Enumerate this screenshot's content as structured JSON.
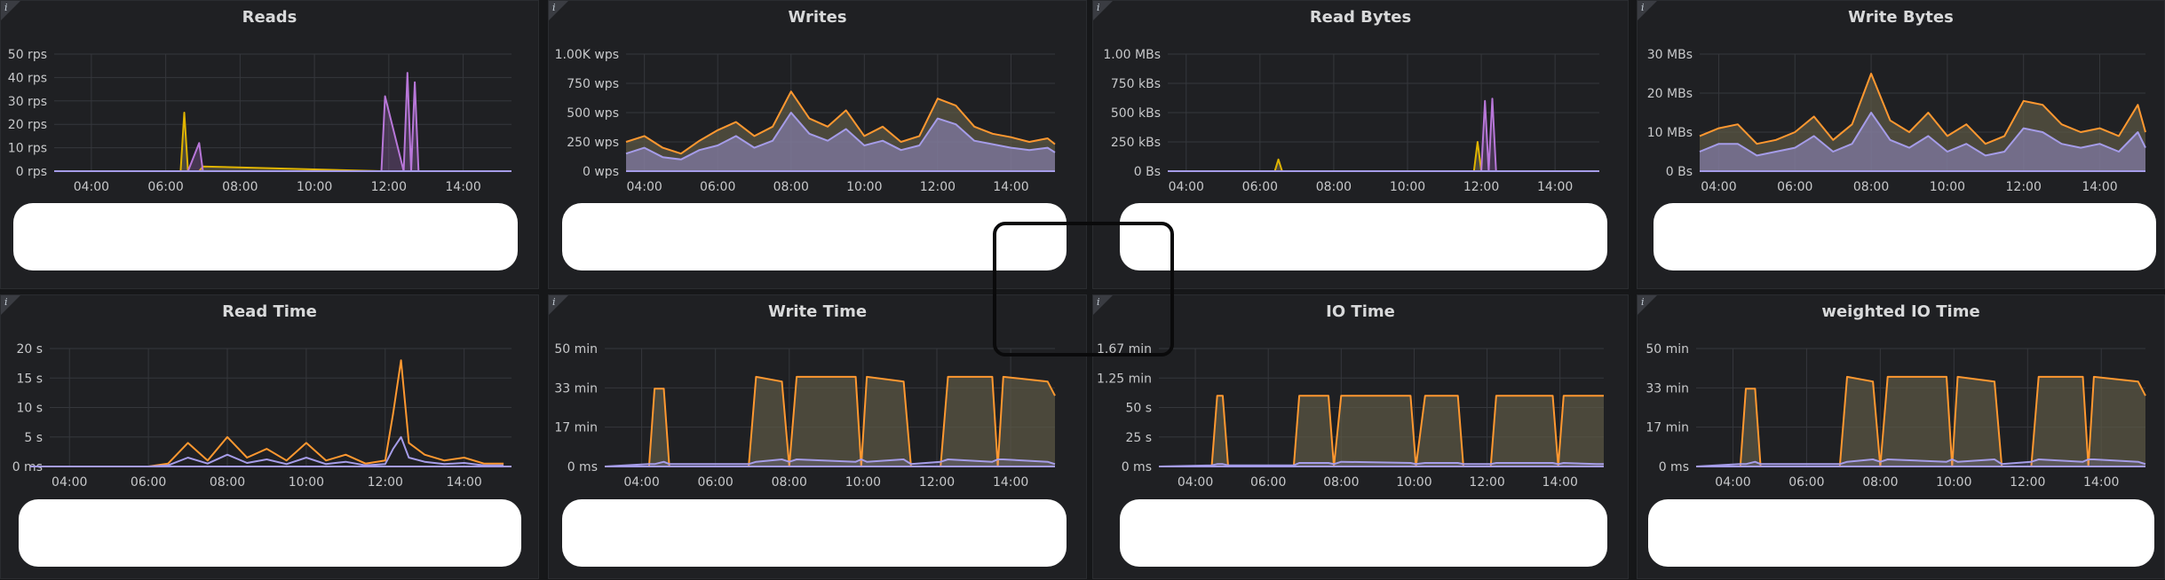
{
  "panels": [
    {
      "title": "Reads",
      "info": "i"
    },
    {
      "title": "Writes",
      "info": "i"
    },
    {
      "title": "Read Bytes",
      "info": "i"
    },
    {
      "title": "Write Bytes",
      "info": "i"
    },
    {
      "title": "Read Time",
      "info": "i"
    },
    {
      "title": "Write Time",
      "info": "i"
    },
    {
      "title": "IO Time",
      "info": "i"
    },
    {
      "title": "weighted IO Time",
      "info": "i"
    }
  ],
  "colors": {
    "orange": "#ff9830",
    "purple": "#b877d9",
    "lavender": "#a59ce8",
    "yellow": "#e0b400",
    "background": "#1f2023",
    "grid": "#35373c"
  },
  "chart_data": [
    {
      "type": "area",
      "title": "Reads",
      "ylim": [
        0,
        50
      ],
      "y_ticks": [
        "0 rps",
        "10 rps",
        "20 rps",
        "30 rps",
        "40 rps",
        "50 rps"
      ],
      "x_ticks": [
        "04:00",
        "06:00",
        "08:00",
        "10:00",
        "12:00",
        "14:00"
      ],
      "x": [
        3.5,
        6.4,
        6.5,
        6.6,
        6.9,
        7.0,
        11.8,
        11.9,
        12.4,
        12.5,
        12.6,
        12.7,
        12.8
      ],
      "series": [
        {
          "values": [
            0,
            0,
            25,
            0,
            0,
            2,
            0,
            0,
            0,
            0,
            0,
            0,
            0
          ]
        },
        {
          "values": [
            0,
            0,
            0,
            0,
            12,
            0,
            0,
            32,
            0,
            42,
            0,
            38,
            0
          ]
        }
      ]
    },
    {
      "type": "area",
      "title": "Writes",
      "ylim": [
        0,
        1000
      ],
      "y_ticks": [
        "0 wps",
        "250 wps",
        "500 wps",
        "750 wps",
        "1.00K wps"
      ],
      "x_ticks": [
        "04:00",
        "06:00",
        "08:00",
        "10:00",
        "12:00",
        "14:00"
      ],
      "x": [
        3.5,
        4.0,
        4.5,
        5.0,
        5.5,
        6.0,
        6.5,
        7.0,
        7.5,
        8.0,
        8.5,
        9.0,
        9.5,
        10.0,
        10.5,
        11.0,
        11.5,
        12.0,
        12.5,
        13.0,
        13.5,
        14.0,
        14.5,
        15.0,
        15.2
      ],
      "series": [
        {
          "values": [
            250,
            300,
            200,
            150,
            260,
            350,
            420,
            300,
            380,
            680,
            450,
            380,
            520,
            300,
            380,
            250,
            300,
            620,
            560,
            380,
            320,
            290,
            250,
            280,
            230
          ]
        },
        {
          "values": [
            150,
            200,
            120,
            100,
            180,
            220,
            300,
            200,
            260,
            500,
            320,
            260,
            360,
            220,
            260,
            180,
            220,
            450,
            400,
            260,
            230,
            200,
            180,
            200,
            160
          ]
        }
      ]
    },
    {
      "type": "area",
      "title": "Read Bytes",
      "ylim": [
        0,
        1000
      ],
      "y_ticks": [
        "0 Bs",
        "250 kBs",
        "500 kBs",
        "750 kBs",
        "1.00 MBs"
      ],
      "x_ticks": [
        "04:00",
        "06:00",
        "08:00",
        "10:00",
        "12:00",
        "14:00"
      ],
      "x": [
        3.5,
        6.4,
        6.5,
        6.6,
        11.8,
        11.9,
        12.0,
        12.1,
        12.2,
        12.3,
        12.4,
        12.5
      ],
      "series": [
        {
          "values": [
            0,
            0,
            100,
            0,
            0,
            250,
            0,
            0,
            0,
            0,
            0,
            0
          ]
        },
        {
          "values": [
            0,
            0,
            0,
            0,
            0,
            0,
            0,
            600,
            0,
            620,
            0,
            0
          ]
        }
      ]
    },
    {
      "type": "area",
      "title": "Write Bytes",
      "ylim": [
        0,
        30
      ],
      "y_ticks": [
        "0 Bs",
        "10 MBs",
        "20 MBs",
        "30 MBs"
      ],
      "x_ticks": [
        "04:00",
        "06:00",
        "08:00",
        "10:00",
        "12:00",
        "14:00"
      ],
      "x": [
        3.5,
        4.0,
        4.5,
        5.0,
        5.5,
        6.0,
        6.5,
        7.0,
        7.5,
        8.0,
        8.5,
        9.0,
        9.5,
        10.0,
        10.5,
        11.0,
        11.5,
        12.0,
        12.5,
        13.0,
        13.5,
        14.0,
        14.5,
        15.0,
        15.2
      ],
      "series": [
        {
          "values": [
            9,
            11,
            12,
            7,
            8,
            10,
            14,
            8,
            12,
            25,
            13,
            10,
            15,
            9,
            12,
            7,
            9,
            18,
            17,
            12,
            10,
            11,
            9,
            17,
            10
          ]
        },
        {
          "values": [
            5,
            7,
            7,
            4,
            5,
            6,
            9,
            5,
            7,
            15,
            8,
            6,
            9,
            5,
            7,
            4,
            5,
            11,
            10,
            7,
            6,
            7,
            5,
            10,
            6
          ]
        }
      ]
    },
    {
      "type": "line",
      "title": "Read Time",
      "ylim": [
        0,
        20
      ],
      "y_ticks": [
        "0 ms",
        "5 s",
        "10 s",
        "15 s",
        "20 s"
      ],
      "x_ticks": [
        "04:00",
        "06:00",
        "08:00",
        "10:00",
        "12:00",
        "14:00"
      ],
      "x": [
        3.0,
        6.0,
        6.5,
        7.0,
        7.5,
        8.0,
        8.5,
        9.0,
        9.5,
        10.0,
        10.5,
        11.0,
        11.5,
        12.0,
        12.2,
        12.4,
        12.6,
        13.0,
        13.5,
        14.0,
        14.5,
        15.0
      ],
      "series": [
        {
          "values": [
            0,
            0,
            0.5,
            4,
            1,
            5,
            1.5,
            3,
            1,
            4,
            1,
            2,
            0.5,
            1,
            9,
            18,
            4,
            2,
            1,
            1.5,
            0.5,
            0.5
          ]
        },
        {
          "values": [
            0,
            0,
            0.2,
            1.5,
            0.5,
            2,
            0.6,
            1.2,
            0.4,
            1.5,
            0.4,
            0.8,
            0.2,
            0.4,
            3,
            5,
            1.5,
            0.8,
            0.4,
            0.6,
            0.2,
            0.2
          ]
        }
      ]
    },
    {
      "type": "line",
      "title": "Write Time",
      "ylim": [
        0,
        50
      ],
      "y_ticks": [
        "0 ms",
        "17 min",
        "33 min",
        "50 min"
      ],
      "x_ticks": [
        "04:00",
        "06:00",
        "08:00",
        "10:00",
        "12:00",
        "14:00"
      ],
      "x": [
        3.0,
        4.2,
        4.35,
        4.6,
        4.75,
        6.9,
        7.1,
        7.8,
        8.0,
        8.2,
        9.8,
        9.95,
        10.1,
        11.1,
        11.3,
        12.1,
        12.3,
        13.5,
        13.65,
        13.8,
        15.0,
        15.2
      ],
      "series": [
        {
          "values": [
            0,
            0,
            33,
            33,
            0,
            0,
            38,
            36,
            0,
            38,
            38,
            0,
            38,
            36,
            0,
            0,
            38,
            38,
            0,
            38,
            36,
            30
          ]
        },
        {
          "values": [
            0,
            1,
            1,
            2,
            1,
            1,
            2,
            3,
            2,
            3,
            2,
            3,
            2,
            3,
            1,
            2,
            3,
            2,
            3,
            3,
            2,
            1
          ]
        }
      ]
    },
    {
      "type": "line",
      "title": "IO Time",
      "ylim": [
        0,
        100
      ],
      "y_ticks": [
        "0 ms",
        "25 s",
        "50 s",
        "1.25 min",
        "1.67 min"
      ],
      "x_ticks": [
        "04:00",
        "06:00",
        "08:00",
        "10:00",
        "12:00",
        "14:00"
      ],
      "x": [
        3.0,
        4.45,
        4.6,
        4.75,
        4.9,
        6.7,
        6.85,
        7.65,
        7.8,
        8.0,
        9.9,
        10.05,
        10.3,
        11.2,
        11.35,
        12.1,
        12.25,
        13.8,
        13.95,
        14.1,
        15.0,
        15.2
      ],
      "series": [
        {
          "values": [
            0,
            0,
            60,
            60,
            0,
            0,
            60,
            60,
            0,
            60,
            60,
            0,
            60,
            60,
            0,
            0,
            60,
            60,
            0,
            60,
            60,
            60
          ]
        },
        {
          "values": [
            0,
            1,
            2,
            2,
            1,
            1,
            3,
            3,
            2,
            4,
            3,
            2,
            3,
            3,
            2,
            2,
            3,
            3,
            2,
            3,
            2,
            2
          ]
        }
      ]
    },
    {
      "type": "line",
      "title": "weighted IO Time",
      "ylim": [
        0,
        50
      ],
      "y_ticks": [
        "0 ms",
        "17 min",
        "33 min",
        "50 min"
      ],
      "x_ticks": [
        "04:00",
        "06:00",
        "08:00",
        "10:00",
        "12:00",
        "14:00"
      ],
      "x": [
        3.0,
        4.2,
        4.35,
        4.6,
        4.75,
        6.9,
        7.1,
        7.8,
        8.0,
        8.2,
        9.8,
        9.95,
        10.1,
        11.1,
        11.3,
        12.1,
        12.3,
        13.5,
        13.65,
        13.8,
        15.0,
        15.2
      ],
      "series": [
        {
          "values": [
            0,
            0,
            33,
            33,
            0,
            0,
            38,
            36,
            0,
            38,
            38,
            0,
            38,
            36,
            0,
            0,
            38,
            38,
            0,
            38,
            36,
            30
          ]
        },
        {
          "values": [
            0,
            1,
            1,
            2,
            1,
            1,
            2,
            3,
            2,
            3,
            2,
            3,
            2,
            3,
            1,
            2,
            3,
            2,
            3,
            3,
            2,
            1
          ]
        }
      ]
    }
  ]
}
